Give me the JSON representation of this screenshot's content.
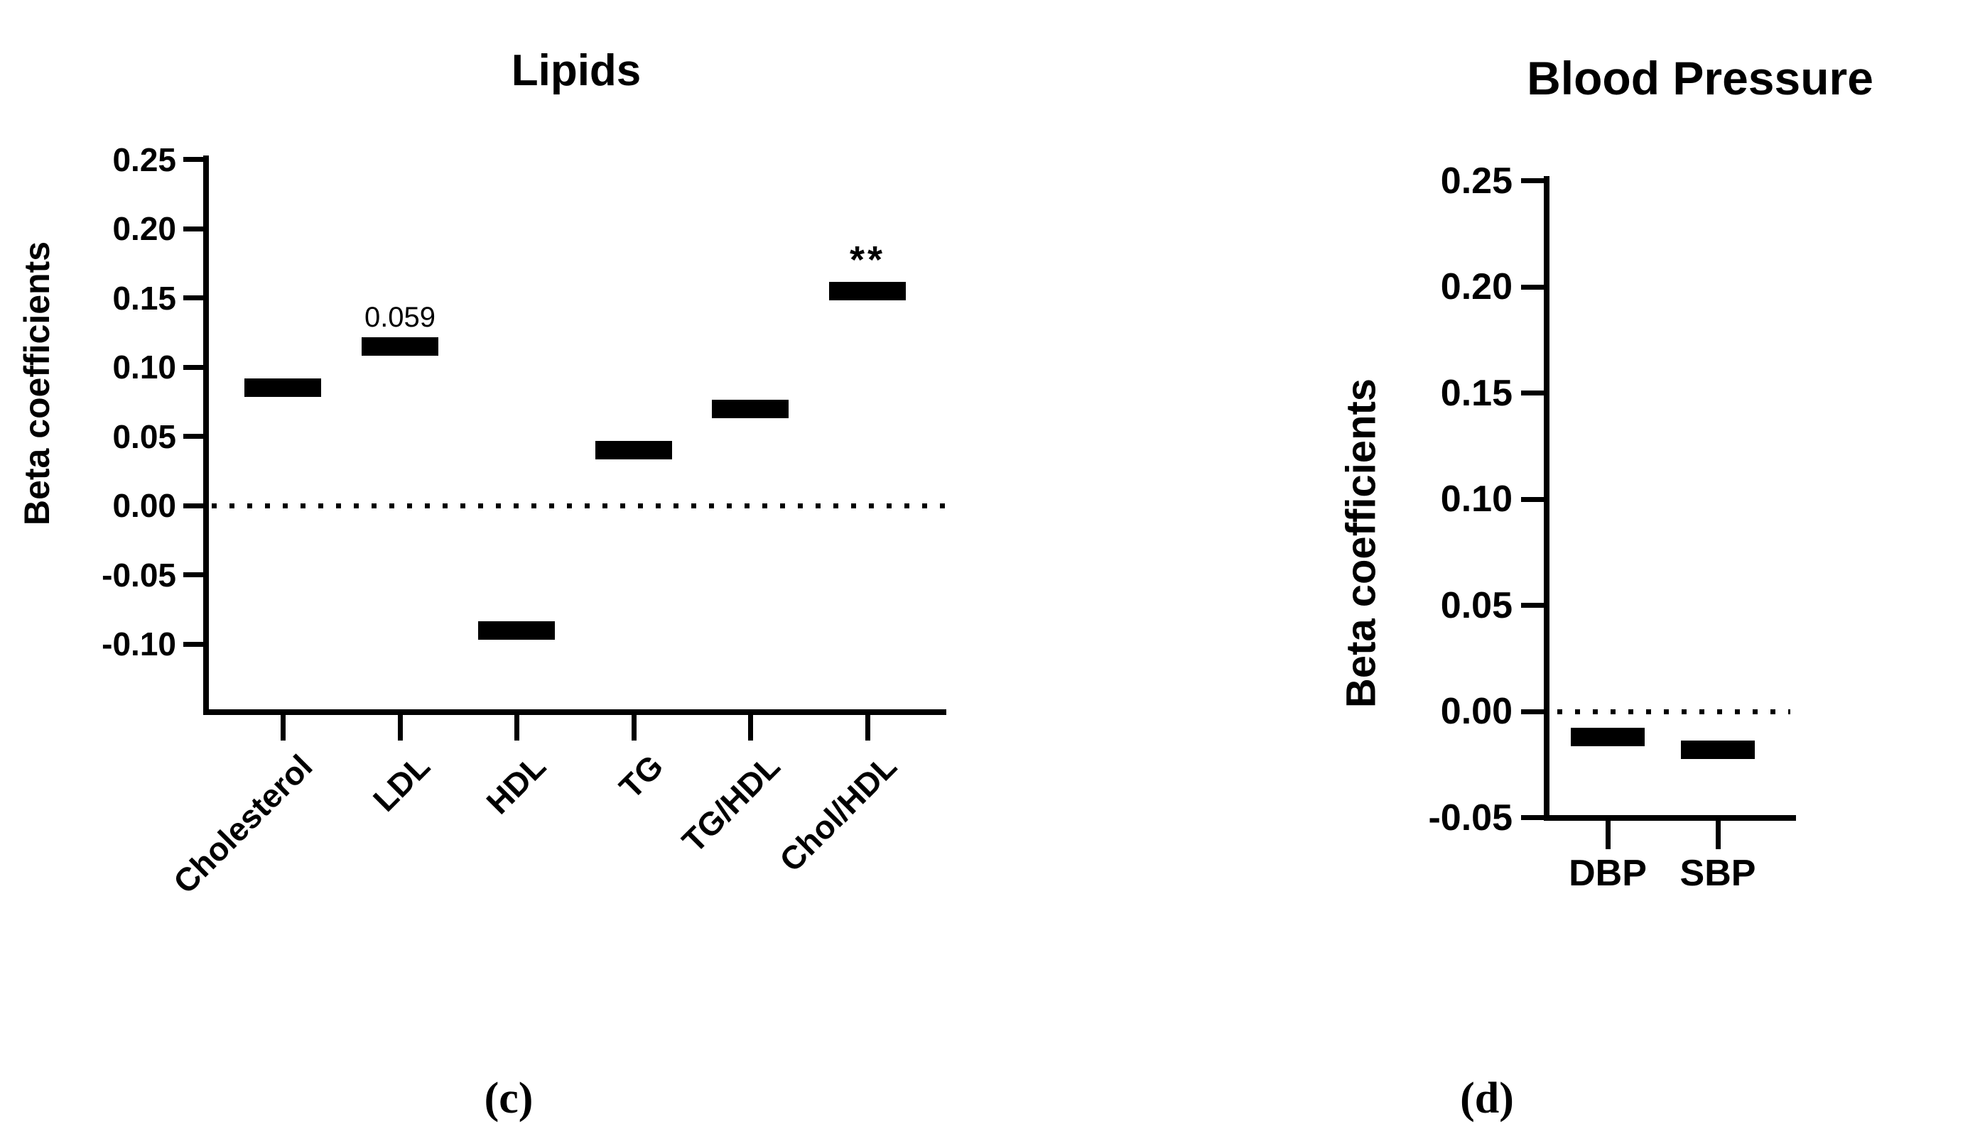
{
  "figure": {
    "background_color": "#ffffff",
    "ink_color": "#000000",
    "panel_labels": {
      "left": "(c)",
      "right": "(d)"
    }
  },
  "chart_data": [
    {
      "type": "bar",
      "subtype": "floating-mean-bars",
      "title": "Lipids",
      "ylabel": "Beta coefficients",
      "xlabel": "",
      "categories": [
        "Cholesterol",
        "LDL",
        "HDL",
        "TG",
        "TG/HDL",
        "Chol/HDL"
      ],
      "values": [
        0.085,
        0.115,
        -0.09,
        0.04,
        0.07,
        0.155
      ],
      "ylim": [
        -0.15,
        0.25
      ],
      "yticks": [
        0.25,
        0.2,
        0.15,
        0.1,
        0.05,
        0.0,
        -0.05,
        -0.1
      ],
      "ytick_labels": [
        "0.25",
        "0.20",
        "0.15",
        "0.10",
        "0.05",
        "0.00",
        "-0.05",
        "-0.10"
      ],
      "zero_line": "dotted",
      "grid": false,
      "legend": null,
      "annotations": [
        {
          "category": "LDL",
          "text": "0.059",
          "kind": "p-value"
        },
        {
          "category": "Chol/HDL",
          "text": "**",
          "kind": "significance"
        }
      ],
      "panel_label": "(c)"
    },
    {
      "type": "bar",
      "subtype": "floating-mean-bars",
      "title": "Blood Pressure",
      "ylabel": "Beta coefficients",
      "xlabel": "",
      "categories": [
        "DBP",
        "SBP"
      ],
      "values": [
        -0.012,
        -0.018
      ],
      "ylim": [
        -0.05,
        0.25
      ],
      "yticks": [
        0.25,
        0.2,
        0.15,
        0.1,
        0.05,
        0.0,
        -0.05
      ],
      "ytick_labels": [
        "0.25",
        "0.20",
        "0.15",
        "0.10",
        "0.05",
        "0.00",
        "-0.05"
      ],
      "zero_line": "dotted",
      "grid": false,
      "legend": null,
      "annotations": [],
      "panel_label": "(d)"
    }
  ]
}
